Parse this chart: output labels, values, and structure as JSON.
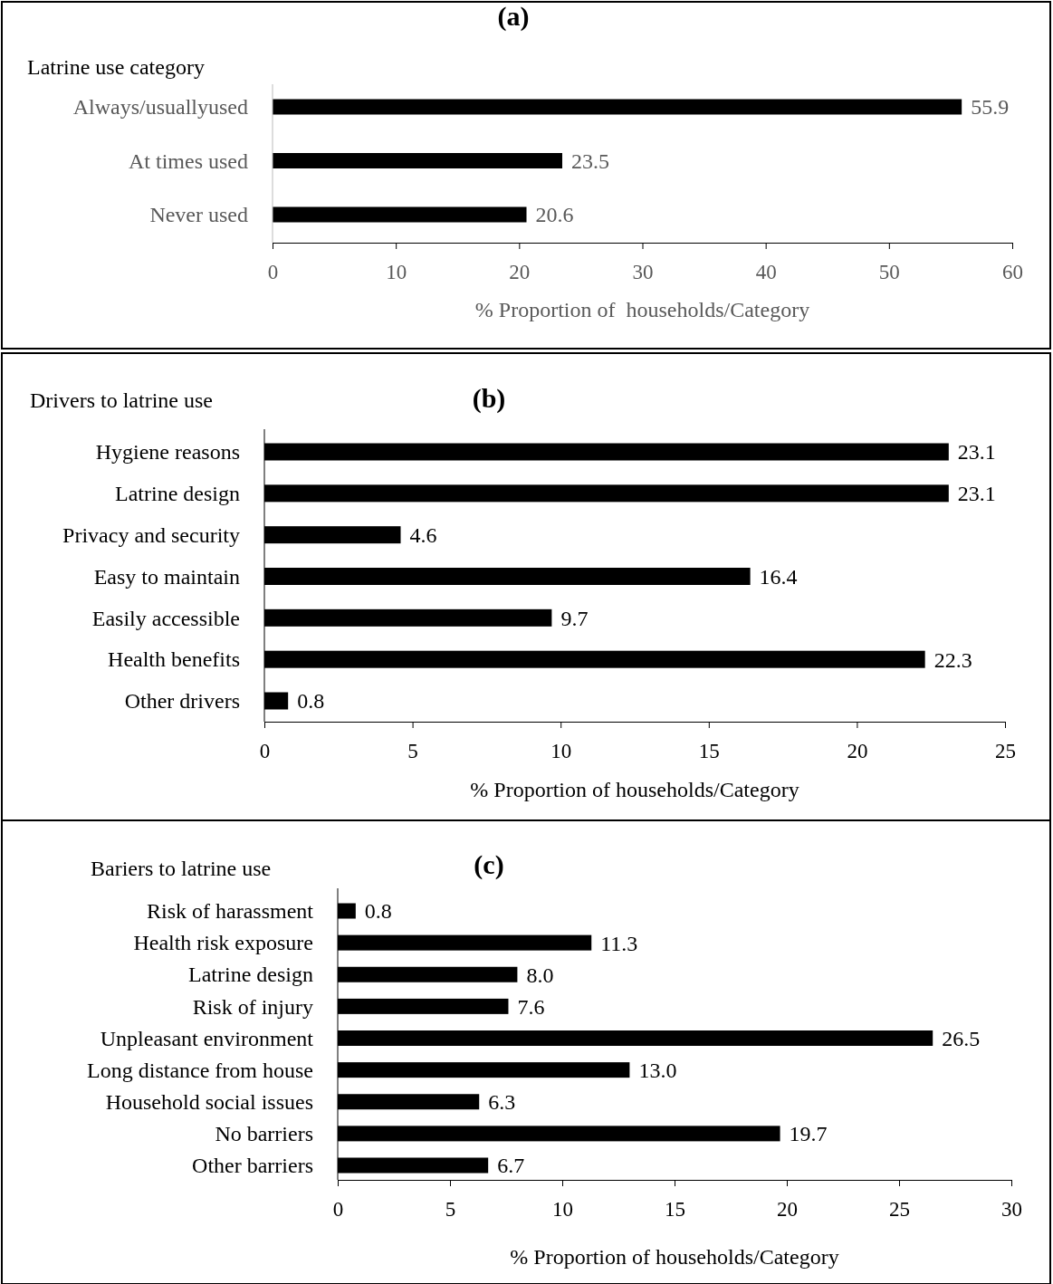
{
  "chart_data": [
    {
      "type": "bar",
      "orientation": "horizontal",
      "title": "(a)",
      "ylabel": "Latrine use category",
      "xlabel": "% Proportion of  households/Category",
      "categories": [
        "Always/usuallyused",
        "At times used",
        "Never used"
      ],
      "values": [
        55.9,
        23.5,
        20.6
      ],
      "value_labels": [
        "55.9",
        "23.5",
        "20.6"
      ],
      "color": "#000000",
      "xlim": [
        0,
        60
      ],
      "xticks": [
        0,
        10,
        20,
        30,
        40,
        50,
        60
      ],
      "grid": false
    },
    {
      "type": "bar",
      "orientation": "horizontal",
      "title": "(b)",
      "ylabel": "Drivers to latrine use",
      "xlabel": "% Proportion of households/Category",
      "categories": [
        "Hygiene reasons",
        "Latrine design",
        "Privacy and security",
        "Easy to maintain",
        "Easily accessible",
        "Health benefits",
        "Other drivers"
      ],
      "values": [
        23.1,
        23.1,
        4.6,
        16.4,
        9.7,
        22.3,
        0.8
      ],
      "value_labels": [
        "23.1",
        "23.1",
        "4.6",
        "16.4",
        "9.7",
        "22.3",
        "0.8"
      ],
      "color": "#000000",
      "xlim": [
        0,
        25
      ],
      "xticks": [
        0,
        5,
        10,
        15,
        20,
        25
      ],
      "grid": false
    },
    {
      "type": "bar",
      "orientation": "horizontal",
      "title": "(c)",
      "ylabel": "Bariers to latrine use",
      "xlabel": "% Proportion of households/Category",
      "categories": [
        "Risk of harassment",
        "Health risk exposure",
        "Latrine design",
        "Risk of injury",
        "Unpleasant environment",
        "Long distance from house",
        "Household social issues",
        "No barriers",
        "Other barriers"
      ],
      "values": [
        0.8,
        11.3,
        8.0,
        7.6,
        26.5,
        13.0,
        6.3,
        19.7,
        6.7
      ],
      "value_labels": [
        "0.8",
        "11.3",
        "8.0",
        "7.6",
        "26.5",
        "13.0",
        "6.3",
        "19.7",
        "6.7"
      ],
      "color": "#000000",
      "xlim": [
        0,
        30
      ],
      "xticks": [
        0,
        5,
        10,
        15,
        20,
        25,
        30
      ],
      "grid": false
    }
  ]
}
